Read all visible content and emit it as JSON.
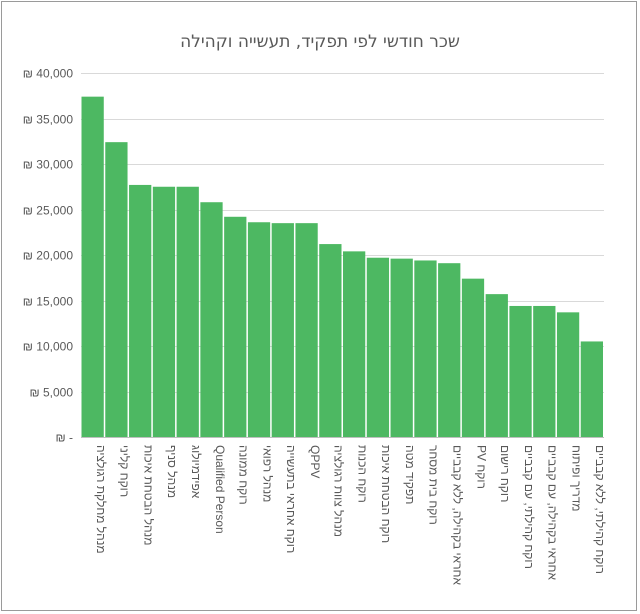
{
  "chart_data": {
    "type": "bar",
    "title": "שכר חודשי לפי תפקיד, תעשייה וקהילה",
    "xlabel": "",
    "ylabel": "",
    "ylim": [
      0,
      40000
    ],
    "yticks": [
      0,
      5000,
      10000,
      15000,
      20000,
      25000,
      30000,
      35000,
      40000
    ],
    "ytick_labels": [
      "₪ -",
      "₪ 5,000",
      "₪ 10,000",
      "₪ 15,000",
      "₪ 20,000",
      "₪ 25,000",
      "₪ 30,000",
      "₪ 35,000",
      "₪ 40,000"
    ],
    "grid": true,
    "legend": "none",
    "bar_color": "#4db862",
    "categories": [
      "מנהל מחלקת רגולציה",
      "רוקח קליני",
      "מנהל הבטחת איכות",
      "מנהל סניף",
      "אפידמיולוג",
      "Qualified Person",
      "רוקח ממונה",
      "מנהל רפואי",
      "רוקח אחראי בתעשייה",
      "QPPV",
      "מנהל צוות רגולציה",
      "רוקח הכנות",
      "רוקח הבטחת איכות",
      "תפקיד מטה",
      "רוקח בית מסחר",
      "אחראי בקהילה, ללא קבביים",
      "PV רוקח",
      "רוקח רישום",
      "רוקח קהילתי, עם קבביים",
      "אחראי בקהילה, עם קבביים",
      "מדריך ופיתוח",
      "רוקח קהילתי, ללא קבביים"
    ],
    "values": [
      37400,
      32400,
      27700,
      27500,
      27500,
      25800,
      24200,
      23600,
      23500,
      23500,
      21200,
      20400,
      19700,
      19600,
      19400,
      19100,
      17400,
      15700,
      14400,
      14400,
      13700,
      10500
    ]
  }
}
